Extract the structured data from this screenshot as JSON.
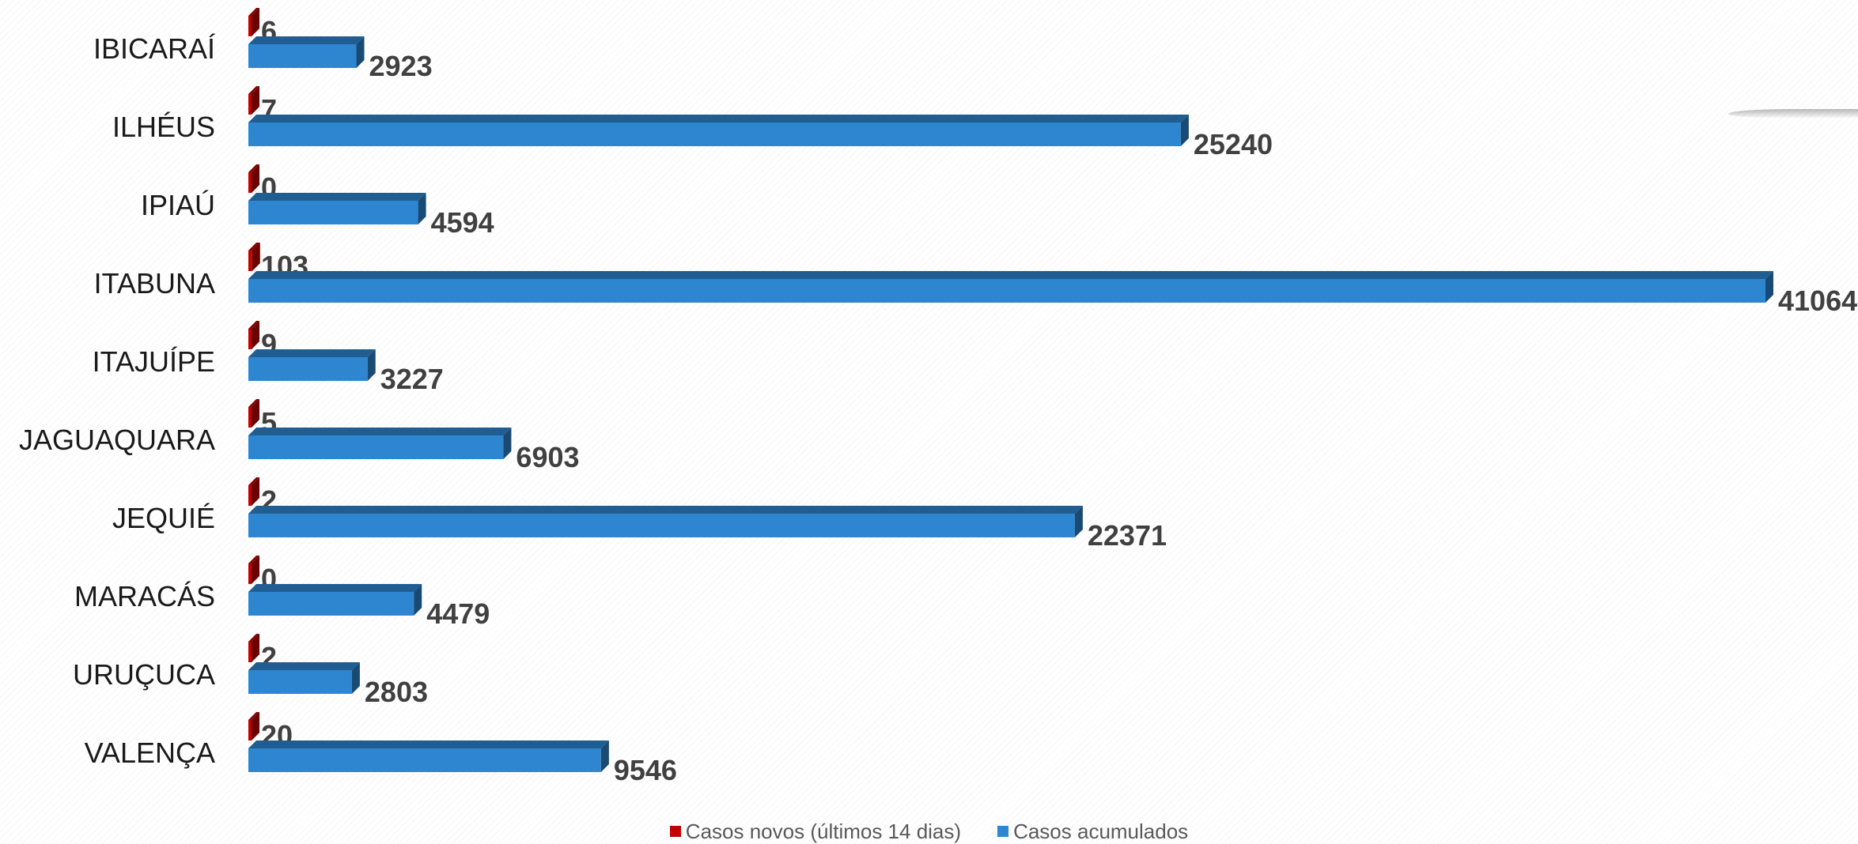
{
  "chart_data": {
    "type": "bar",
    "orientation": "horizontal",
    "style": "3d",
    "categories": [
      "IBICARAÍ",
      "ILHÉUS",
      "IPIAÚ",
      "ITABUNA",
      "ITAJUÍPE",
      "JAGUAQUARA",
      "JEQUIÉ",
      "MARACÁS",
      "URUÇUCA",
      "VALENÇA"
    ],
    "series": [
      {
        "name": "Casos novos (últimos 14 dias)",
        "color": "#c00000",
        "values": [
          6,
          7,
          0,
          103,
          9,
          5,
          2,
          0,
          2,
          20
        ],
        "labels": [
          "6",
          "7",
          "0",
          "103",
          "9",
          "5",
          "2",
          "0",
          "2",
          "20"
        ]
      },
      {
        "name": "Casos acumulados",
        "color": "#2e86d1",
        "values": [
          2923,
          25240,
          4594,
          41064,
          3227,
          6903,
          22371,
          4479,
          2803,
          9546
        ],
        "labels": [
          "2923",
          "25240",
          "4594",
          "41064",
          "3227",
          "6903",
          "22371",
          "4479",
          "2803",
          "9546"
        ]
      }
    ],
    "xlim": [
      0,
      41064
    ],
    "grid": false,
    "legend_position": "bottom"
  },
  "legend": {
    "new_cases": "Casos novos (últimos 14 dias)",
    "cumulative": "Casos acumulados"
  }
}
